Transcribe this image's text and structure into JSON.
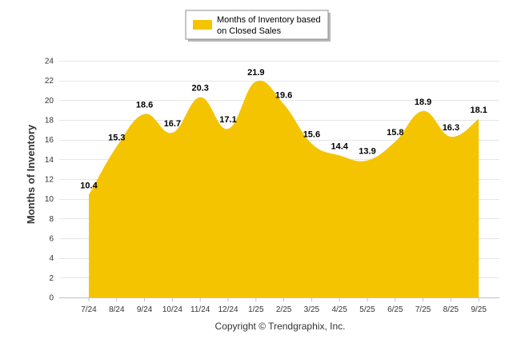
{
  "chart_data": {
    "type": "area",
    "title": "",
    "xlabel": "",
    "ylabel": "Months of Inventory",
    "ylim": [
      0,
      24
    ],
    "yticks": [
      0,
      2,
      4,
      6,
      8,
      10,
      12,
      14,
      16,
      18,
      20,
      22,
      24
    ],
    "categories": [
      "7/24",
      "8/24",
      "9/24",
      "10/24",
      "11/24",
      "12/24",
      "1/25",
      "2/25",
      "3/25",
      "4/25",
      "5/25",
      "6/25",
      "7/25",
      "8/25",
      "9/25"
    ],
    "series": [
      {
        "name": "Months of Inventory based on Closed Sales",
        "color": "#F5C400",
        "values": [
          10.4,
          15.3,
          18.6,
          16.7,
          20.3,
          17.1,
          21.9,
          19.6,
          15.6,
          14.4,
          13.9,
          15.8,
          18.9,
          16.3,
          18.1
        ]
      }
    ],
    "legend": {
      "lines": [
        "Months of Inventory based",
        "on Closed Sales"
      ],
      "position": "top-center"
    },
    "grid": true
  },
  "footer": {
    "copyright": "Copyright © Trendgraphix, Inc."
  }
}
